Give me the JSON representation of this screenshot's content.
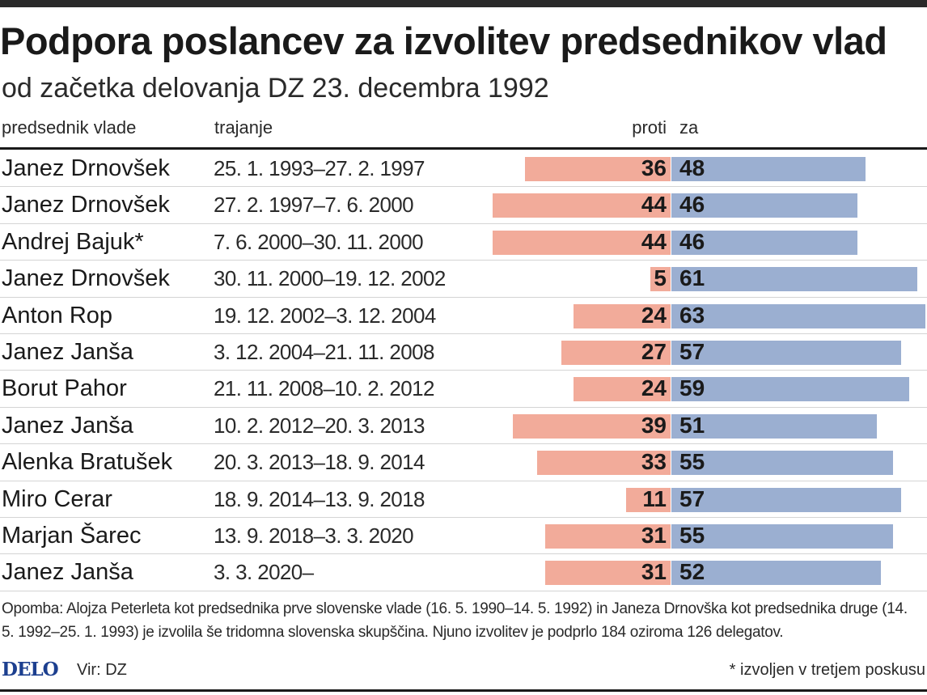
{
  "header": {
    "title": "Podpora poslancev za izvolitev predsednikov vlad",
    "subtitle": "od začetka delovanja DZ 23. decembra 1992"
  },
  "columns": {
    "name": "predsednik vlade",
    "term": "trajanje",
    "against": "proti",
    "for": "za"
  },
  "colors": {
    "against": "#f2ab9a",
    "for": "#9bafd1",
    "logo": "#1c3f8f"
  },
  "chart_data": {
    "type": "bar",
    "orientation": "horizontal-diverging",
    "categories": [
      "Janez Drnovšek",
      "Janez Drnovšek",
      "Andrej Bajuk*",
      "Janez Drnovšek",
      "Anton Rop",
      "Janez Janša",
      "Borut Pahor",
      "Janez Janša",
      "Alenka Bratušek",
      "Miro Cerar",
      "Marjan Šarec",
      "Janez Janša"
    ],
    "terms": [
      "25. 1. 1993–27. 2. 1997",
      "27. 2. 1997–7. 6. 2000",
      "7. 6. 2000–30. 11. 2000",
      "30. 11. 2000–19. 12. 2002",
      "19. 12. 2002–3. 12. 2004",
      "3. 12. 2004–21. 11. 2008",
      "21. 11. 2008–10. 2. 2012",
      "10. 2. 2012–20. 3. 2013",
      "20. 3. 2013–18. 9. 2014",
      "18. 9. 2014–13. 9. 2018",
      "13. 9. 2018–3. 3. 2020",
      "3. 3. 2020–"
    ],
    "series": [
      {
        "name": "proti",
        "values": [
          36,
          44,
          44,
          5,
          24,
          27,
          24,
          39,
          33,
          11,
          31,
          31
        ]
      },
      {
        "name": "za",
        "values": [
          48,
          46,
          46,
          61,
          63,
          57,
          59,
          51,
          55,
          57,
          55,
          52
        ]
      }
    ],
    "xlim": [
      0,
      63
    ]
  },
  "footer": {
    "note": "Opomba: Alojza Peterleta kot predsednika prve slovenske vlade (16. 5. 1990–14. 5. 1992) in Janeza Drnovška kot predsednika druge (14. 5. 1992–25. 1. 1993) je izvolila še tridomna slovenska skupščina. Njuno izvolitev je podprlo 184 oziroma 126 delegatov.",
    "logo": "DELO",
    "source": "Vir: DZ",
    "footnote": "* izvoljen v tretjem poskusu"
  }
}
